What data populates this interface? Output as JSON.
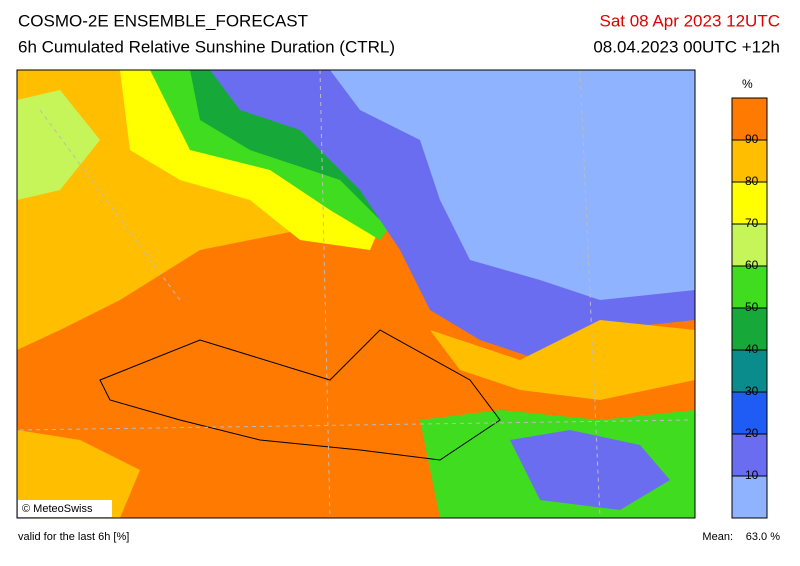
{
  "header": {
    "title": "COSMO-2E ENSEMBLE_FORECAST",
    "subtitle": "6h Cumulated Relative Sunshine Duration (CTRL)",
    "valid_time": "Sat 08 Apr 2023 12UTC",
    "run": "08.04.2023 00UTC +12h"
  },
  "colorbar": {
    "unit": "%",
    "ticks": [
      10,
      20,
      30,
      40,
      50,
      60,
      70,
      80,
      90
    ],
    "colors": [
      "#8fb3ff",
      "#6b6df0",
      "#1f5cf5",
      "#0a8c8c",
      "#17a83a",
      "#3fdc1f",
      "#c6f55a",
      "#ffff00",
      "#ffbf00",
      "#ff7a00"
    ]
  },
  "credit": "© MeteoSwiss",
  "footer": {
    "note": "valid for the last 6h [%]",
    "mean_label": "Mean:",
    "mean": "63.0 %"
  }
}
